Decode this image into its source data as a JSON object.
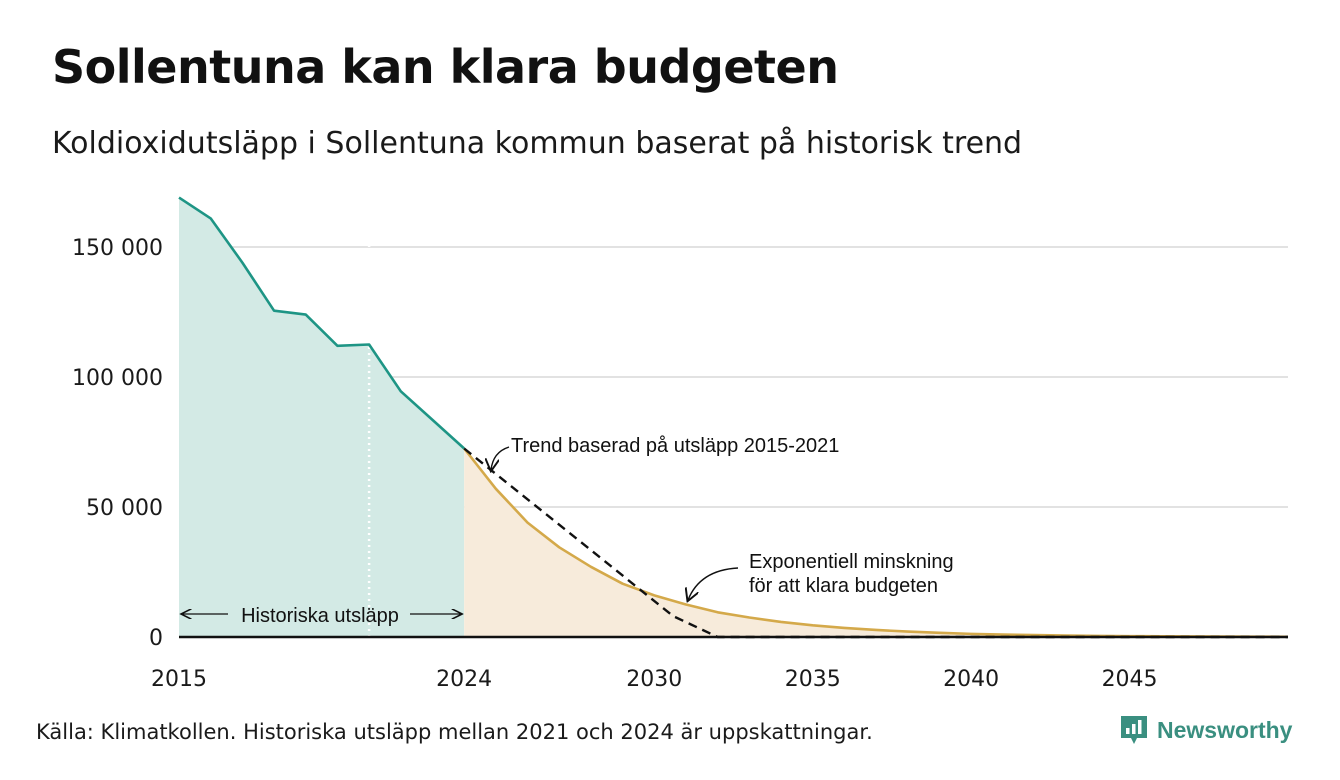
{
  "header": {
    "title": "Sollentuna kan klara budgeten",
    "subtitle": "Koldioxidutsläpp i Sollentuna kommun baserat på historisk trend"
  },
  "footer": {
    "source": "Källa: Klimatkollen. Historiska utsläpp mellan 2021 och 2024 är uppskattningar.",
    "brand": "Newsworthy"
  },
  "colors": {
    "historical_line": "#1e9585",
    "historical_fill": "#d3eae5",
    "budget_line": "#d4a94a",
    "budget_fill": "#f7ebdb",
    "trend_line": "#111111",
    "grid": "#d9d9d9",
    "brand": "#3a8f80"
  },
  "chart_data": {
    "type": "area",
    "xlim": [
      2015,
      2050
    ],
    "ylim": [
      0,
      170000
    ],
    "x_ticks": [
      2015,
      2024,
      2030,
      2035,
      2040,
      2045
    ],
    "x_tick_labels": [
      "2015",
      "2024",
      "2030",
      "2035",
      "2040",
      "2045"
    ],
    "y_ticks": [
      0,
      50000,
      100000,
      150000
    ],
    "y_tick_labels": [
      "0",
      "50 000",
      "100 000",
      "150 000"
    ],
    "grid": true,
    "series": [
      {
        "key": "historical",
        "x": [
          2015,
          2016,
          2017,
          2018,
          2019,
          2020,
          2021,
          2022,
          2023,
          2024
        ],
        "y": [
          169000,
          161000,
          144000,
          125500,
          124000,
          112000,
          112500,
          94500,
          83500,
          72500
        ]
      },
      {
        "key": "exponential",
        "x": [
          2024,
          2025,
          2026,
          2027,
          2028,
          2029,
          2030,
          2031,
          2032,
          2033,
          2034,
          2035,
          2036,
          2037,
          2038,
          2039,
          2040,
          2041,
          2042,
          2043,
          2044,
          2045,
          2046,
          2047,
          2048,
          2049,
          2050
        ],
        "y": [
          72500,
          57000,
          44000,
          34500,
          27000,
          20500,
          16000,
          12500,
          9500,
          7500,
          5800,
          4500,
          3500,
          2700,
          2100,
          1600,
          1200,
          950,
          750,
          550,
          430,
          330,
          260,
          200,
          150,
          120,
          100
        ]
      },
      {
        "key": "trend",
        "x": [
          2024,
          2030.6,
          2032,
          2050
        ],
        "y": [
          72500,
          8000,
          0,
          0
        ]
      }
    ],
    "annotations": {
      "trend": "Trend baserad på utsläpp 2015-2021",
      "exponential_line1": "Exponentiell minskning",
      "exponential_line2": "för att klara budgeten",
      "historical": "Historiska utsläpp"
    },
    "marker_year": 2021
  }
}
